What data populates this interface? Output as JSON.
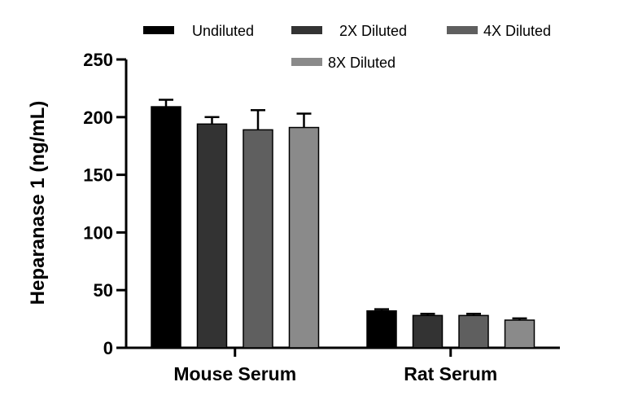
{
  "chart_data": {
    "type": "bar",
    "title": "",
    "xlabel": "",
    "ylabel": "Heparanase 1 (ng/mL)",
    "ylim": [
      0,
      250
    ],
    "yticks": [
      "0",
      "50",
      "100",
      "150",
      "200",
      "250"
    ],
    "categories": [
      "Mouse Serum",
      "Rat Serum"
    ],
    "series": [
      {
        "name": "Undiluted",
        "color": "#000000",
        "values": [
          209,
          32
        ],
        "errors": [
          6,
          1.5
        ]
      },
      {
        "name": "2X Diluted",
        "color": "#333333",
        "values": [
          194,
          28
        ],
        "errors": [
          6,
          1.5
        ]
      },
      {
        "name": "4X Diluted",
        "color": "#5f5f5f",
        "values": [
          189,
          28
        ],
        "errors": [
          17,
          1.5
        ]
      },
      {
        "name": "8X Diluted",
        "color": "#8a8a8a",
        "values": [
          191,
          24
        ],
        "errors": [
          12,
          1.5
        ]
      }
    ],
    "grid": false,
    "legend_position": "top"
  }
}
